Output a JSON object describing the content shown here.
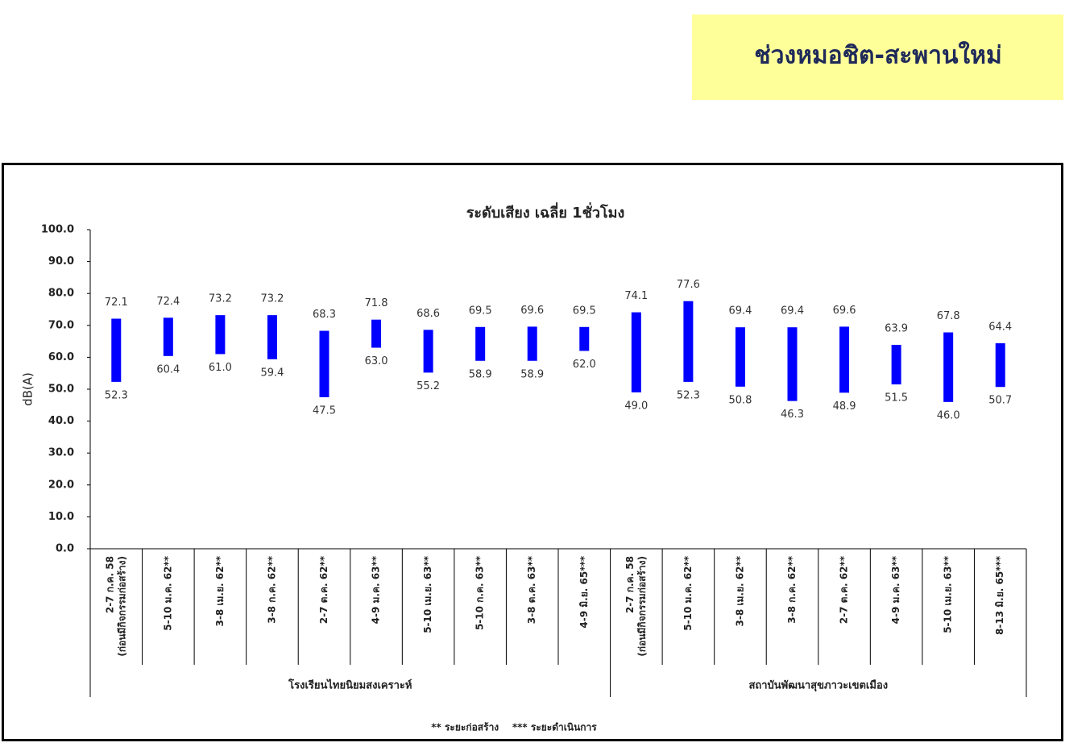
{
  "header": {
    "title": "ช่วงหมอชิต-สะพานใหม่"
  },
  "chart_data": {
    "type": "range-bar",
    "title": "ระดับเสียง เฉลี่ย 1ชั่วโมง",
    "y_label": "dB(A)",
    "color": "#0000ff",
    "ylim": [
      0,
      100
    ],
    "yticks": [
      {
        "value": 0,
        "label": "0.0"
      },
      {
        "value": 10,
        "label": "10.0"
      },
      {
        "value": 20,
        "label": "20.0"
      },
      {
        "value": 30,
        "label": "30.0"
      },
      {
        "value": 40,
        "label": "40.0"
      },
      {
        "value": 50,
        "label": "50.0"
      },
      {
        "value": 60,
        "label": "60.0"
      },
      {
        "value": 70,
        "label": "70.0"
      },
      {
        "value": 80,
        "label": "80.0"
      },
      {
        "value": 90,
        "label": "90.0"
      },
      {
        "value": 100,
        "label": "100.0"
      }
    ],
    "groups": [
      {
        "name": "โรงเรียนไทยนิยมสงเคราะห์",
        "categories": [
          [
            "2-7 ก.ค. 58",
            "(ก่อนมีกิจกรรมก่อสร้าง)"
          ],
          [
            "5-10 ม.ค. 62**"
          ],
          [
            "3-8 เม.ย. 62**"
          ],
          [
            "3-8 ก.ค. 62**"
          ],
          [
            "2-7 ต.ค. 62**"
          ],
          [
            "4-9 ม.ค. 63**"
          ],
          [
            "5-10 เม.ย. 63**"
          ],
          [
            "5-10 ก.ค. 63**"
          ],
          [
            "3-8 ต.ค. 63**"
          ],
          [
            "4-9 มิ.ย. 65***"
          ]
        ]
      },
      {
        "name": "สถาบันพัฒนาสุขภาวะเขตเมือง",
        "categories": [
          [
            "2-7 ก.ค. 58",
            "(ก่อนมีกิจกรรมก่อสร้าง)"
          ],
          [
            "5-10 ม.ค. 62**"
          ],
          [
            "3-8 เม.ย. 62**"
          ],
          [
            "3-8 ก.ค. 62**"
          ],
          [
            "2-7 ต.ค. 62**"
          ],
          [
            "4-9 ม.ค. 63**"
          ],
          [
            "5-10 เม.ย. 63**"
          ],
          [
            "8-13 มิ.ย. 65***"
          ]
        ]
      }
    ],
    "high": {
      "values": [
        72.1,
        72.4,
        73.2,
        73.2,
        68.3,
        71.8,
        68.6,
        69.5,
        69.6,
        69.5,
        74.1,
        77.6,
        69.4,
        69.4,
        69.6,
        63.9,
        67.8,
        64.4
      ],
      "value_labels": [
        "72.1",
        "72.4",
        "73.2",
        "73.2",
        "68.3",
        "71.8",
        "68.6",
        "69.5",
        "69.6",
        "69.5",
        "74.1",
        "77.6",
        "69.4",
        "69.4",
        "69.6",
        "63.9",
        "67.8",
        "64.4"
      ]
    },
    "low": {
      "values": [
        52.3,
        60.4,
        61.0,
        59.4,
        47.5,
        63.0,
        55.2,
        58.9,
        58.9,
        62.0,
        49.0,
        52.3,
        50.8,
        46.3,
        48.9,
        51.5,
        46.0,
        50.7
      ],
      "value_labels": [
        "52.3",
        "60.4",
        "61.0",
        "59.4",
        "47.5",
        "63.0",
        "55.2",
        "58.9",
        "58.9",
        "62.0",
        "49.0",
        "52.3",
        "50.8",
        "46.3",
        "48.9",
        "51.5",
        "46.0",
        "50.7"
      ]
    },
    "footnote": "** ระยะก่อสร้าง    *** ระยะดำเนินการ"
  }
}
